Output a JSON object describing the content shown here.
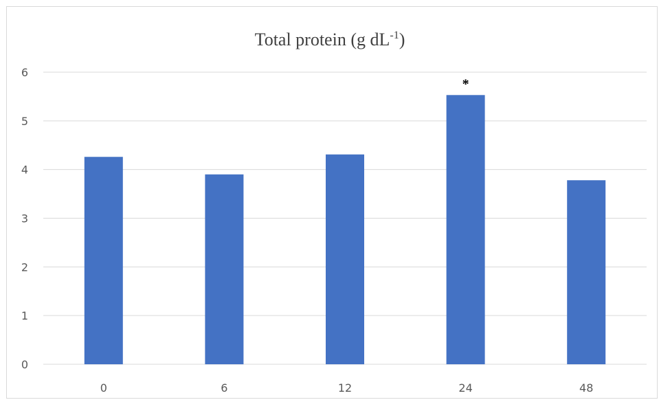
{
  "chart_data": {
    "type": "bar",
    "title": "Total protein (g dL",
    "title_superscript": "-1",
    "title_suffix": ")",
    "categories": [
      "0",
      "6",
      "12",
      "24",
      "48"
    ],
    "values": [
      4.26,
      3.9,
      4.31,
      5.53,
      3.78
    ],
    "annotations": [
      {
        "category": "24",
        "text": "*"
      }
    ],
    "ylim": [
      0,
      6
    ],
    "yticks": [
      0,
      1,
      2,
      3,
      4,
      5,
      6
    ],
    "xlabel": "",
    "ylabel": "",
    "grid": true,
    "legend": false,
    "bar_color": "#4472c4",
    "grid_color": "#d9d9d9"
  }
}
